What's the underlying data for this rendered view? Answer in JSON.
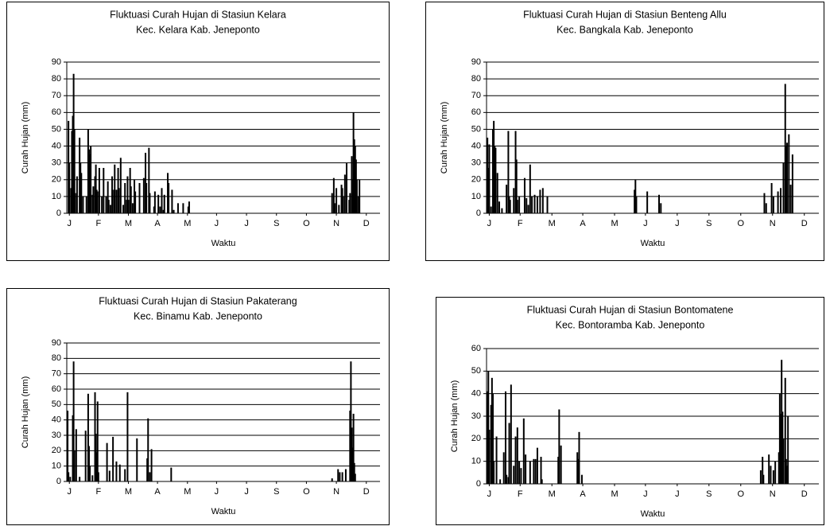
{
  "chart_data": [
    {
      "type": "bar",
      "title": "Fluktuasi Curah Hujan di Stasiun Kelara",
      "subtitle": "Kec. Kelara Kab. Jeneponto",
      "ylabel": "Curah Hujan (mm)",
      "xlabel": "Waktu",
      "color": "#000000",
      "grid": true,
      "ylim": [
        0,
        90
      ],
      "yticks": [
        0,
        10,
        20,
        30,
        40,
        50,
        60,
        70,
        80,
        90
      ],
      "xlim": [
        0,
        366
      ],
      "xticks": [
        {
          "value": 3,
          "label": "J"
        },
        {
          "value": 37,
          "label": "F"
        },
        {
          "value": 72,
          "label": "M"
        },
        {
          "value": 106,
          "label": "A"
        },
        {
          "value": 141,
          "label": "M"
        },
        {
          "value": 175,
          "label": "J"
        },
        {
          "value": 210,
          "label": "J"
        },
        {
          "value": 245,
          "label": "S"
        },
        {
          "value": 280,
          "label": "O"
        },
        {
          "value": 315,
          "label": "N"
        },
        {
          "value": 350,
          "label": "D"
        }
      ],
      "x": [
        2,
        3,
        5,
        6,
        7,
        8,
        9,
        10,
        12,
        15,
        16,
        17,
        19,
        23,
        25,
        26,
        27,
        28,
        30,
        31,
        33,
        34,
        35,
        36,
        38,
        41,
        43,
        46,
        48,
        49,
        51,
        53,
        55,
        56,
        58,
        60,
        61,
        63,
        66,
        68,
        70,
        71,
        72,
        74,
        75,
        77,
        79,
        80,
        85,
        90,
        92,
        93,
        96,
        97,
        102,
        103,
        107,
        109,
        111,
        113,
        114,
        118,
        119,
        123,
        125,
        130,
        136,
        142,
        143,
        310,
        312,
        313,
        315,
        318,
        321,
        322,
        323,
        325,
        327,
        330,
        331,
        333,
        334,
        335,
        336,
        337,
        338,
        339,
        341,
        342
      ],
      "values": [
        55,
        30,
        15,
        49,
        58,
        83,
        50,
        12,
        22,
        45,
        30,
        24,
        10,
        10,
        50,
        38,
        35,
        40,
        11,
        16,
        22,
        29,
        14,
        13,
        27,
        10,
        27,
        10,
        19,
        8,
        5,
        22,
        14,
        29,
        14,
        27,
        15,
        33,
        5,
        18,
        8,
        22,
        8,
        27,
        16,
        6,
        20,
        13,
        18,
        21,
        36,
        18,
        39,
        12,
        4,
        13,
        11,
        4,
        15,
        2,
        11,
        24,
        18,
        14,
        2,
        6,
        6,
        4,
        7,
        12,
        21,
        6,
        15,
        5,
        17,
        15,
        10,
        23,
        30,
        8,
        12,
        34,
        20,
        60,
        44,
        40,
        32,
        20,
        10,
        20
      ]
    },
    {
      "type": "bar",
      "title": "Fluktuasi Curah Hujan di Stasiun Benteng Allu",
      "subtitle": "Kec. Bangkala Kab. Jeneponto",
      "ylabel": "Curah Hujan (mm)",
      "xlabel": "Waktu",
      "color": "#000000",
      "grid": true,
      "ylim": [
        0,
        90
      ],
      "yticks": [
        0,
        10,
        20,
        30,
        40,
        50,
        60,
        70,
        80,
        90
      ],
      "xlim": [
        0,
        366
      ],
      "xticks": [
        {
          "value": 3,
          "label": "J"
        },
        {
          "value": 37,
          "label": "F"
        },
        {
          "value": 72,
          "label": "M"
        },
        {
          "value": 106,
          "label": "A"
        },
        {
          "value": 141,
          "label": "M"
        },
        {
          "value": 175,
          "label": "J"
        },
        {
          "value": 210,
          "label": "J"
        },
        {
          "value": 245,
          "label": "S"
        },
        {
          "value": 280,
          "label": "O"
        },
        {
          "value": 315,
          "label": "N"
        },
        {
          "value": 350,
          "label": "D"
        }
      ],
      "x": [
        1,
        2,
        3,
        5,
        7,
        8,
        9,
        10,
        12,
        14,
        17,
        22,
        24,
        25,
        26,
        30,
        32,
        33,
        34,
        36,
        42,
        44,
        46,
        48,
        50,
        53,
        56,
        59,
        62,
        67,
        163,
        164,
        165,
        177,
        190,
        192,
        306,
        308,
        314,
        316,
        321,
        324,
        327,
        329,
        330,
        331,
        333,
        335,
        337
      ],
      "values": [
        45,
        27,
        41,
        4,
        50,
        55,
        40,
        39,
        24,
        7,
        3,
        17,
        49,
        10,
        8,
        15,
        49,
        32,
        8,
        10,
        21,
        9,
        5,
        29,
        10,
        11,
        10,
        14,
        15,
        10,
        14,
        20,
        10,
        13,
        11,
        6,
        12,
        6,
        18,
        10,
        13,
        15,
        30,
        77,
        40,
        42,
        47,
        17,
        35
      ]
    },
    {
      "type": "bar",
      "title": "Fluktuasi Curah Hujan di Stasiun Pakaterang",
      "subtitle": "Kec. Binamu Kab. Jeneponto",
      "ylabel": "Curah Hujan (mm)",
      "xlabel": "Waktu",
      "color": "#000000",
      "grid": true,
      "ylim": [
        0,
        90
      ],
      "yticks": [
        0,
        10,
        20,
        30,
        40,
        50,
        60,
        70,
        80,
        90
      ],
      "xlim": [
        0,
        366
      ],
      "xticks": [
        {
          "value": 3,
          "label": "J"
        },
        {
          "value": 37,
          "label": "F"
        },
        {
          "value": 72,
          "label": "M"
        },
        {
          "value": 106,
          "label": "A"
        },
        {
          "value": 141,
          "label": "M"
        },
        {
          "value": 175,
          "label": "J"
        },
        {
          "value": 210,
          "label": "J"
        },
        {
          "value": 245,
          "label": "S"
        },
        {
          "value": 280,
          "label": "O"
        },
        {
          "value": 315,
          "label": "N"
        },
        {
          "value": 350,
          "label": "D"
        }
      ],
      "x": [
        1,
        2,
        4,
        7,
        8,
        9,
        11,
        15,
        22,
        25,
        26,
        27,
        30,
        33,
        34,
        35,
        36,
        37,
        47,
        50,
        54,
        58,
        62,
        68,
        71,
        82,
        94,
        95,
        97,
        99,
        122,
        310,
        317,
        319,
        322,
        326,
        331,
        332,
        333,
        334,
        335,
        336,
        337
      ],
      "values": [
        46,
        6,
        3,
        43,
        78,
        20,
        34,
        3,
        33,
        57,
        23,
        10,
        4,
        58,
        31,
        19,
        52,
        6,
        25,
        7,
        29,
        13,
        11,
        8,
        58,
        28,
        15,
        41,
        6,
        21,
        9,
        2,
        8,
        6,
        6,
        8,
        46,
        78,
        35,
        22,
        44,
        12,
        5
      ]
    },
    {
      "type": "bar",
      "title": "Fluktuasi Curah Hujan di Stasiun Bontomatene",
      "subtitle": "Kec. Bontoramba Kab. Jeneponto",
      "ylabel": "Curah Hujan (mm)",
      "xlabel": "Waktu",
      "color": "#000000",
      "grid": true,
      "ylim": [
        0,
        60
      ],
      "yticks": [
        0,
        10,
        20,
        30,
        40,
        50,
        60
      ],
      "xlim": [
        0,
        366
      ],
      "xticks": [
        {
          "value": 3,
          "label": "J"
        },
        {
          "value": 37,
          "label": "F"
        },
        {
          "value": 72,
          "label": "M"
        },
        {
          "value": 106,
          "label": "A"
        },
        {
          "value": 141,
          "label": "M"
        },
        {
          "value": 175,
          "label": "J"
        },
        {
          "value": 210,
          "label": "J"
        },
        {
          "value": 245,
          "label": "S"
        },
        {
          "value": 280,
          "label": "O"
        },
        {
          "value": 315,
          "label": "N"
        },
        {
          "value": 350,
          "label": "D"
        }
      ],
      "x": [
        1,
        2,
        3,
        5,
        6,
        7,
        8,
        11,
        15,
        19,
        21,
        22,
        24,
        25,
        27,
        30,
        32,
        34,
        36,
        38,
        41,
        43,
        48,
        52,
        54,
        56,
        60,
        61,
        79,
        80,
        82,
        100,
        101,
        102,
        105,
        302,
        304,
        305,
        311,
        313,
        316,
        318,
        322,
        323,
        324,
        325,
        326,
        327,
        329,
        330,
        331,
        332
      ],
      "values": [
        41,
        50,
        24,
        35,
        47,
        40,
        10,
        21,
        2,
        14,
        41,
        4,
        3,
        27,
        44,
        8,
        21,
        25,
        10,
        7,
        29,
        13,
        10,
        11,
        11,
        16,
        12,
        2,
        12,
        33,
        17,
        14,
        11,
        23,
        4,
        6,
        12,
        4,
        13,
        8,
        6,
        10,
        14,
        40,
        31,
        55,
        32,
        20,
        47,
        11,
        8,
        30
      ]
    }
  ]
}
